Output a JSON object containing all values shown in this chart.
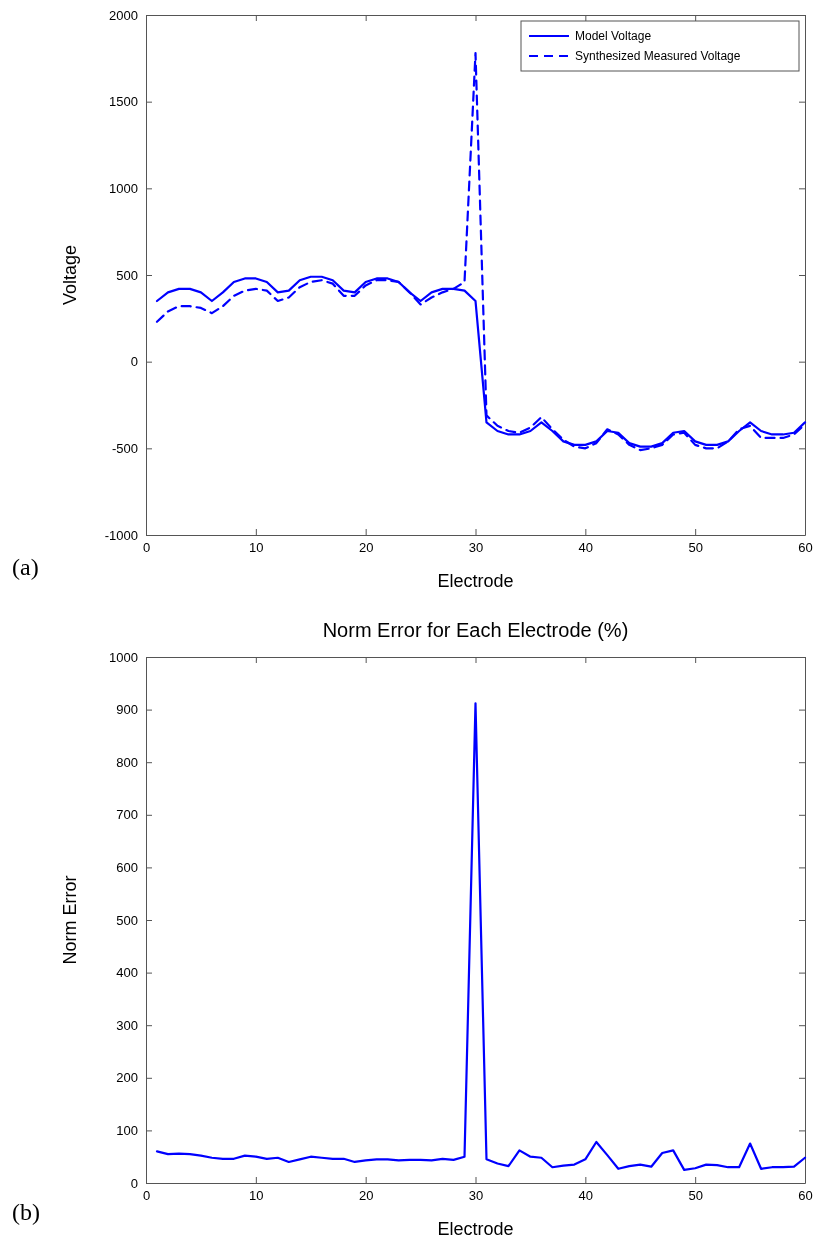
{
  "chart_data": [
    {
      "type": "line",
      "xlabel": "Electrode",
      "ylabel": "Voltage",
      "x": [
        1,
        2,
        3,
        4,
        5,
        6,
        7,
        8,
        9,
        10,
        11,
        12,
        13,
        14,
        15,
        16,
        17,
        18,
        19,
        20,
        21,
        22,
        23,
        24,
        25,
        26,
        27,
        28,
        29,
        30,
        31,
        32,
        33,
        34,
        35,
        36,
        37,
        38,
        39,
        40,
        41,
        42,
        43,
        44,
        45,
        46,
        47,
        48,
        49,
        50,
        51,
        52,
        53,
        54,
        55,
        56,
        57,
        58,
        59,
        60
      ],
      "series": [
        {
          "name": "Model Voltage",
          "color": "#0000ff",
          "line_style": "solid",
          "values": [
            350,
            400,
            420,
            420,
            400,
            350,
            400,
            460,
            480,
            480,
            460,
            400,
            410,
            470,
            490,
            490,
            470,
            410,
            400,
            460,
            480,
            480,
            460,
            400,
            350,
            400,
            420,
            420,
            410,
            350,
            -350,
            -400,
            -420,
            -420,
            -400,
            -350,
            -400,
            -460,
            -480,
            -480,
            -460,
            -400,
            -410,
            -470,
            -490,
            -490,
            -470,
            -410,
            -400,
            -460,
            -480,
            -480,
            -460,
            -400,
            -350,
            -400,
            -420,
            -420,
            -410,
            -350
          ]
        },
        {
          "name": "Synthesized Measured Voltage",
          "color": "#0000ff",
          "line_style": "dashed",
          "values": [
            230,
            290,
            320,
            320,
            310,
            280,
            320,
            380,
            410,
            420,
            410,
            350,
            370,
            430,
            460,
            470,
            450,
            380,
            380,
            440,
            470,
            470,
            460,
            400,
            330,
            370,
            400,
            420,
            460,
            1780,
            -310,
            -370,
            -400,
            -410,
            -380,
            -320,
            -390,
            -450,
            -490,
            -500,
            -470,
            -390,
            -420,
            -480,
            -510,
            -500,
            -480,
            -420,
            -410,
            -480,
            -500,
            -500,
            -460,
            -390,
            -370,
            -440,
            -440,
            -440,
            -420,
            -360
          ]
        }
      ],
      "xlim": [
        0,
        60
      ],
      "xticks": [
        0,
        10,
        20,
        30,
        40,
        50,
        60
      ],
      "ylim": [
        -1000,
        2000
      ],
      "yticks": [
        -1000,
        -500,
        0,
        500,
        1000,
        1500,
        2000
      ],
      "legend": "top right",
      "annotations": [
        "(a)"
      ]
    },
    {
      "type": "line",
      "title": "Norm Error for Each Electrode (%)",
      "xlabel": "Electrode",
      "ylabel": "Norm Error",
      "x": [
        1,
        2,
        3,
        4,
        5,
        6,
        7,
        8,
        9,
        10,
        11,
        12,
        13,
        14,
        15,
        16,
        17,
        18,
        19,
        20,
        21,
        22,
        23,
        24,
        25,
        26,
        27,
        28,
        29,
        30,
        31,
        32,
        33,
        34,
        35,
        36,
        37,
        38,
        39,
        40,
        41,
        42,
        43,
        44,
        45,
        46,
        47,
        48,
        49,
        50,
        51,
        52,
        53,
        54,
        55,
        56,
        57,
        58,
        59,
        60
      ],
      "series": [
        {
          "color": "#0000ff",
          "values": [
            60,
            55,
            56,
            55,
            52,
            48,
            46,
            46,
            52,
            50,
            46,
            48,
            40,
            45,
            50,
            48,
            46,
            46,
            40,
            43,
            45,
            45,
            43,
            44,
            44,
            43,
            46,
            44,
            50,
            912,
            45,
            37,
            32,
            62,
            50,
            48,
            30,
            33,
            35,
            45,
            78,
            53,
            27,
            32,
            35,
            31,
            57,
            62,
            25,
            28,
            35,
            34,
            30,
            30,
            75,
            27,
            30,
            30,
            31,
            48
          ]
        }
      ],
      "xlim": [
        0,
        60
      ],
      "xticks": [
        0,
        10,
        20,
        30,
        40,
        50,
        60
      ],
      "ylim": [
        0,
        1000
      ],
      "yticks": [
        0,
        100,
        200,
        300,
        400,
        500,
        600,
        700,
        800,
        900,
        1000
      ],
      "annotations": [
        "(b)"
      ]
    }
  ]
}
